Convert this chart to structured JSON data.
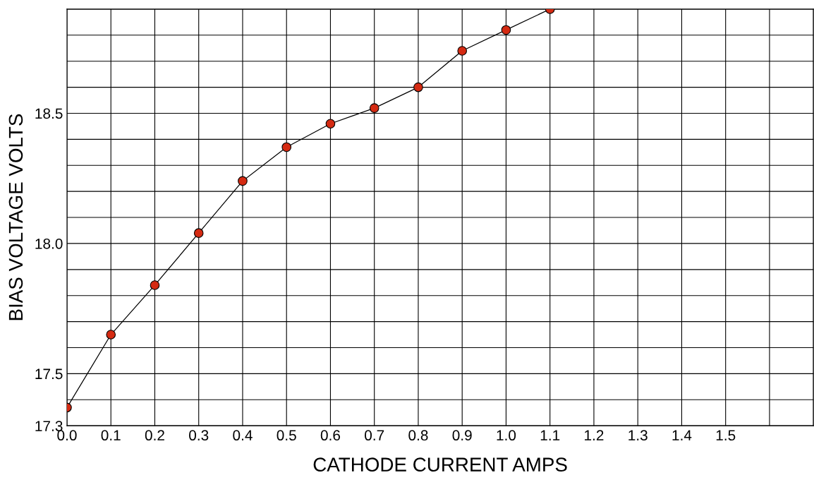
{
  "chart_data": {
    "type": "line",
    "xlabel": "CATHODE CURRENT AMPS",
    "ylabel": "BIAS VOLTAGE VOLTS",
    "x": [
      0.0,
      0.1,
      0.2,
      0.3,
      0.4,
      0.5,
      0.6,
      0.7,
      0.8,
      0.9,
      1.0,
      1.1
    ],
    "series": [
      {
        "color": "#d42a12",
        "values": [
          17.37,
          17.65,
          17.84,
          18.04,
          18.24,
          18.37,
          18.46,
          18.52,
          18.6,
          18.74,
          18.82,
          18.9
        ]
      }
    ],
    "xlim": [
      0,
      1.7
    ],
    "ylim": [
      17.3,
      18.9
    ],
    "xticks": [
      {
        "value": 0,
        "label": "0.0"
      },
      0.1,
      0.2,
      0.3,
      0.4,
      0.5,
      0.6,
      0.7,
      0.8,
      0.9,
      {
        "value": 1,
        "label": "1.0"
      },
      1.1,
      1.2,
      1.3,
      1.4,
      1.5,
      {
        "value": 1.6,
        "label": null
      },
      {
        "value": 1.7,
        "label": null
      }
    ],
    "yticks": [
      17.3,
      {
        "value": 17.4,
        "label": null
      },
      17.5,
      {
        "value": 17.6,
        "label": null
      },
      {
        "value": 17.7,
        "label": null
      },
      {
        "value": 17.8,
        "label": null
      },
      {
        "value": 17.9,
        "label": null
      },
      {
        "value": 18,
        "label": "18.0"
      },
      {
        "value": 18.1,
        "label": null
      },
      {
        "value": 18.2,
        "label": null
      },
      {
        "value": 18.3,
        "label": null
      },
      {
        "value": 18.4,
        "label": null
      },
      18.5,
      {
        "value": 18.6,
        "label": null
      },
      {
        "value": 18.7,
        "label": null
      },
      {
        "value": 18.8,
        "label": null
      },
      {
        "value": 18.9,
        "label": null
      }
    ],
    "grid": true,
    "marker": "circle",
    "line_style": "solid"
  }
}
